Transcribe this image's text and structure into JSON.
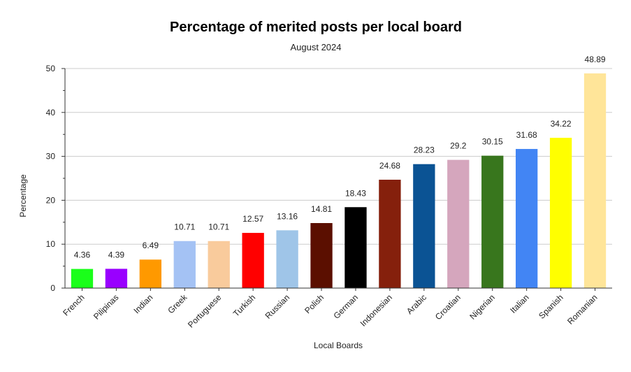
{
  "chart_data": {
    "type": "bar",
    "title": "Percentage of merited posts per local board",
    "subtitle": "August 2024",
    "xlabel": "Local Boards",
    "ylabel": "Percentage",
    "ylim": [
      0,
      50
    ],
    "yticks": [
      0,
      10,
      20,
      30,
      40,
      50
    ],
    "grid": true,
    "legend": "none",
    "categories": [
      "French",
      "Pilipinas",
      "Indian",
      "Greek",
      "Portuguese",
      "Turkish",
      "Russian",
      "Polish",
      "German",
      "Indonesian",
      "Arabic",
      "Croatian",
      "Nigerian",
      "Italian",
      "Spanish",
      "Romanian"
    ],
    "values": [
      4.36,
      4.39,
      6.49,
      10.71,
      10.71,
      12.57,
      13.16,
      14.81,
      18.43,
      24.68,
      28.23,
      29.2,
      30.15,
      31.68,
      34.22,
      48.89
    ],
    "colors": [
      "#1aff1a",
      "#9900ff",
      "#ff9900",
      "#a4c2f4",
      "#f9cb9c",
      "#ff0000",
      "#9fc5e8",
      "#5b0f00",
      "#000000",
      "#85200c",
      "#0b5394",
      "#d5a6bd",
      "#38761d",
      "#4285f4",
      "#ffff00",
      "#ffe599"
    ]
  }
}
